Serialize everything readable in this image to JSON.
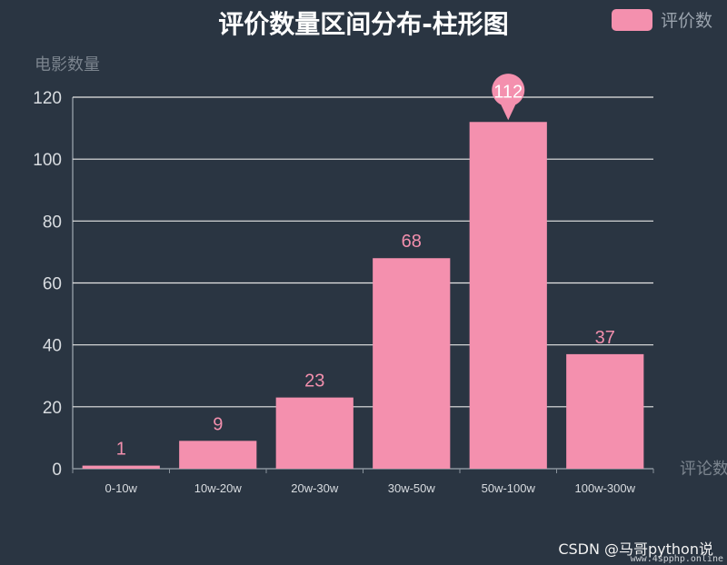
{
  "chart_data": {
    "type": "bar",
    "title": "评价数量区间分布-柱形图",
    "ylabel": "电影数量",
    "xlabel": "评论数",
    "legend": {
      "position": "top-right",
      "entries": [
        "评价数"
      ]
    },
    "categories": [
      "0-10w",
      "10w-20w",
      "20w-30w",
      "30w-50w",
      "50w-100w",
      "100w-300w"
    ],
    "series": [
      {
        "name": "评价数",
        "values": [
          1,
          9,
          23,
          68,
          112,
          37
        ],
        "color": "#f490ae"
      }
    ],
    "ylim": [
      0,
      120
    ],
    "yticks": [
      0,
      20,
      40,
      60,
      80,
      100,
      120
    ],
    "grid": true,
    "max_marker": {
      "category": "50w-100w",
      "value": 112
    }
  },
  "watermark": {
    "text": "CSDN @马哥python说",
    "site": "www.4spphp.online"
  },
  "colors": {
    "background": "#2a3542",
    "bar": "#f490ae",
    "grid": "#e6e6e6",
    "axis": "#8a939c"
  }
}
